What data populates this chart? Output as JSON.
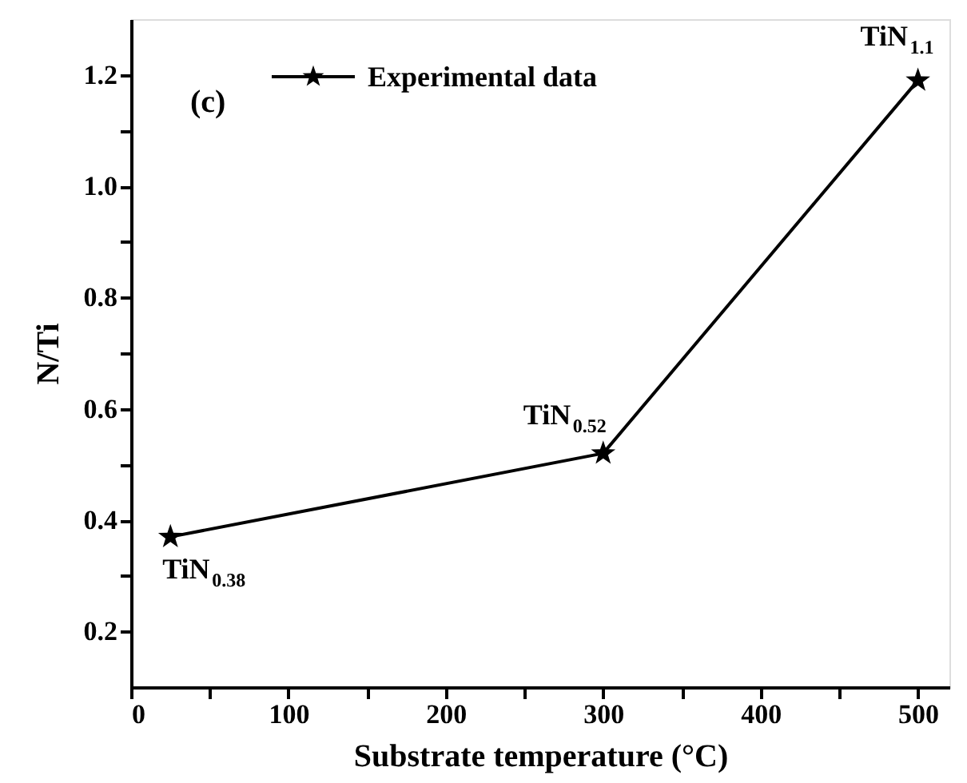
{
  "chart_data": {
    "type": "line",
    "xlabel": "Substrate temperature (°C)",
    "ylabel": "N/Ti",
    "x": [
      25,
      300,
      500
    ],
    "series": [
      {
        "name": "Experimental data",
        "color": "#000000",
        "values": [
          0.37,
          0.52,
          1.19
        ]
      }
    ],
    "xlim": [
      0,
      520
    ],
    "ylim": [
      0.1,
      1.3
    ],
    "xticks": [
      0,
      {
        "value": 50,
        "label": null
      },
      100,
      {
        "value": 150,
        "label": null
      },
      200,
      {
        "value": 250,
        "label": null
      },
      300,
      {
        "value": 350,
        "label": null
      },
      400,
      {
        "value": 450,
        "label": null
      },
      500
    ],
    "yticks": [
      0.2,
      {
        "value": 0.3,
        "label": null
      },
      0.4,
      {
        "value": 0.5,
        "label": null
      },
      0.6,
      {
        "value": 0.7,
        "label": null
      },
      0.8,
      {
        "value": 0.9,
        "label": null
      },
      {
        "value": 1.0,
        "label": "1.0"
      },
      {
        "value": 1.1,
        "label": null
      },
      1.2
    ],
    "annotations": [
      "(c)",
      {
        "text": "TiN$_{0.38}$",
        "x": 25,
        "y": 0.37
      },
      {
        "text": "TiN$_{0.52}$",
        "x": 300,
        "y": 0.52
      },
      {
        "text": "TiN$_{1.1}$",
        "x": 500,
        "y": 1.19
      }
    ],
    "marker": "star",
    "line_style": "solid",
    "legend": "top",
    "grid": false
  }
}
